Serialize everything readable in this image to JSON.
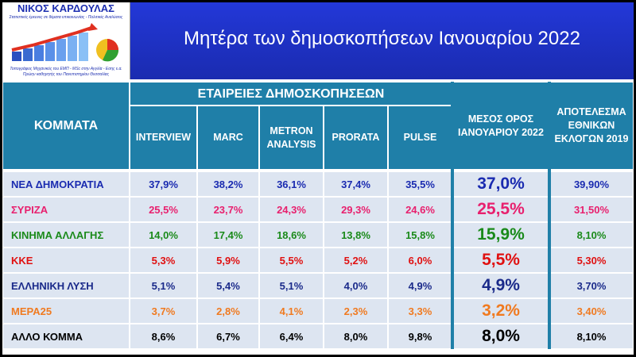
{
  "header": {
    "logo_name": "ΝΙΚΟΣ ΚΑΡΔΟΥΛΑΣ",
    "logo_tagline": "Στατιστικές έρευνες σε θέματα επικοινωνίας - Πολιτικές Αναλύσεις",
    "logo_credentials": [
      "Τοπογράφος Μηχανικός του ΕΜΠ - MSc στην Αγγλία - Εσης ε.α.",
      "Πρώην καθηγητής του Πανεπιστημίου Θεσσαλίας"
    ],
    "title": "Μητέρα των δημοσκοπήσεων Ιανουαρίου 2022"
  },
  "colors": {
    "title_bg": "#1f33c8",
    "header_bg": "#1f7fa8",
    "row_bg": "#dde5f1"
  },
  "chart_data": {
    "type": "table",
    "title": "Μητέρα των δημοσκοπήσεων Ιανουαρίου 2022",
    "party_header": "ΚΟΜΜΑΤΑ",
    "companies_header": "ΕΤΑΙΡΕΙΕΣ ΔΗΜΟΣΚΟΠΗΣΕΩΝ",
    "companies": [
      "INTERVIEW",
      "MARC",
      "METRON ANALYSIS",
      "PRORATA",
      "PULSE"
    ],
    "average_header": "ΜΕΣΟΣ ΟΡΟΣ ΙΑΝΟΥΑΡΙΟΥ 2022",
    "election_header": "ΑΠΟΤΕΛΕΣΜΑ ΕΘΝΙΚΩΝ ΕΚΛΟΓΩΝ 2019",
    "rows": [
      {
        "party": "ΝΕΑ ΔΗΜΟΚΡΑΤΙΑ",
        "color": "#1a2bb0",
        "values": [
          "37,9%",
          "38,2%",
          "36,1%",
          "37,4%",
          "35,5%"
        ],
        "average": "37,0%",
        "election_2019": "39,90%"
      },
      {
        "party": "ΣΥΡΙΖΑ",
        "color": "#e8206e",
        "values": [
          "25,5%",
          "23,7%",
          "24,3%",
          "29,3%",
          "24,6%"
        ],
        "average": "25,5%",
        "election_2019": "31,50%"
      },
      {
        "party": "ΚΙΝΗΜΑ ΑΛΛΑΓΗΣ",
        "color": "#1a8a1a",
        "values": [
          "14,0%",
          "17,4%",
          "18,6%",
          "13,8%",
          "15,8%"
        ],
        "average": "15,9%",
        "election_2019": "8,10%"
      },
      {
        "party": "ΚΚΕ",
        "color": "#e01010",
        "values": [
          "5,3%",
          "5,9%",
          "5,5%",
          "5,2%",
          "6,0%"
        ],
        "average": "5,5%",
        "election_2019": "5,30%"
      },
      {
        "party": "ΕΛΛΗΝΙΚΗ ΛΥΣΗ",
        "color": "#1a2a8a",
        "values": [
          "5,1%",
          "5,4%",
          "5,1%",
          "4,0%",
          "4,9%"
        ],
        "average": "4,9%",
        "election_2019": "3,70%"
      },
      {
        "party": "ΜΕΡΑ25",
        "color": "#f07a20",
        "values": [
          "3,7%",
          "2,8%",
          "4,1%",
          "2,3%",
          "3,3%"
        ],
        "average": "3,2%",
        "election_2019": "3,40%"
      },
      {
        "party": "ΑΛΛΟ ΚΟΜΜΑ",
        "color": "#000000",
        "values": [
          "8,6%",
          "6,7%",
          "6,4%",
          "8,0%",
          "9,8%"
        ],
        "average": "8,0%",
        "election_2019": "8,10%"
      }
    ]
  }
}
